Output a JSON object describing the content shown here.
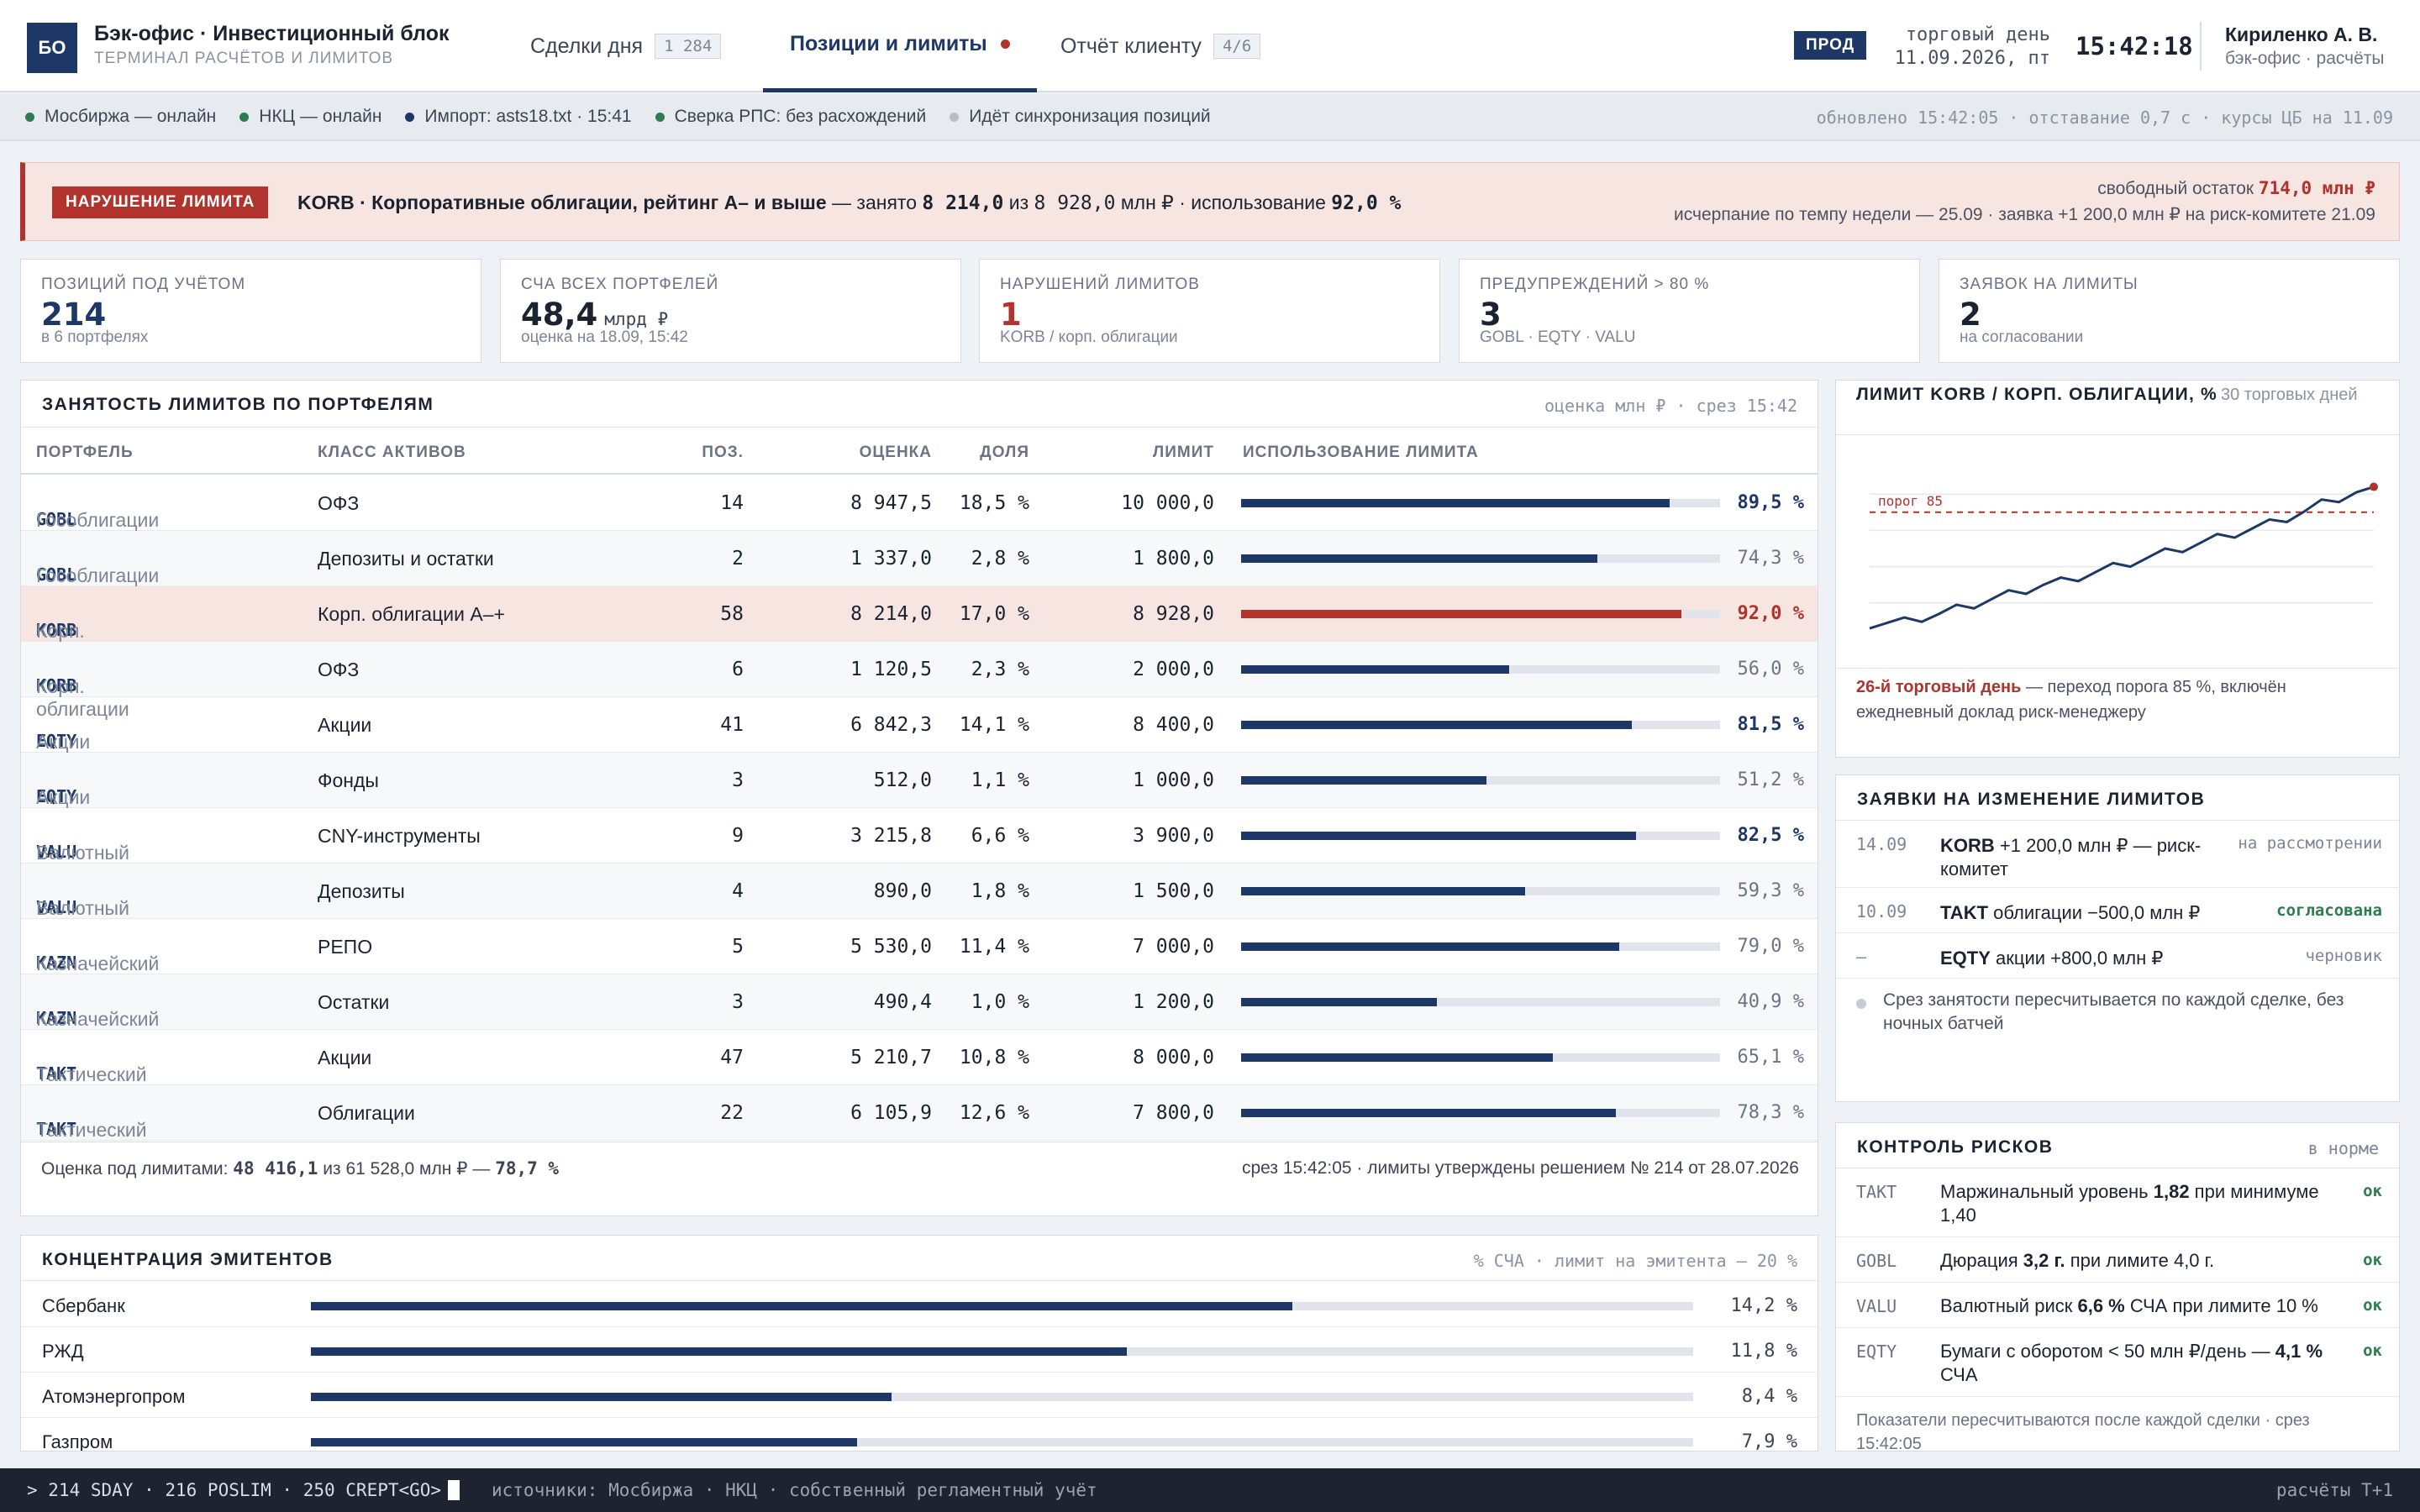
{
  "app": {
    "logo": "БО",
    "title": "Бэк-офис · Инвестиционный блок",
    "subtitle": "ТЕРМИНАЛ РАСЧЁТОВ И ЛИМИТОВ"
  },
  "tabs": [
    {
      "label": "Сделки дня",
      "count": "1 284"
    },
    {
      "label": "Позиции и лимиты"
    },
    {
      "label": "Отчёт клиенту",
      "count": "4/6"
    }
  ],
  "header": {
    "env": "ПРОД",
    "day_label": "торговый день",
    "day_value": "11.09.2026, пт",
    "clock": "15:42:18",
    "user": "Кириленко А. В.",
    "role": "бэк-офис · расчёты"
  },
  "status": {
    "items": [
      {
        "text": "Мосбиржа — онлайн",
        "color": "#2e7d4f"
      },
      {
        "text": "НКЦ — онлайн",
        "color": "#2e7d4f"
      },
      {
        "text": "Импорт: asts18.txt · 15:41",
        "color": "#1d3866"
      },
      {
        "text": "Сверка РПС: без расхождений",
        "color": "#2e7d4f"
      },
      {
        "text": "Идёт синхронизация позиций",
        "color": "#b8bec9"
      }
    ],
    "updated": "обновлено 15:42:05 · отставание 0,7 с · курсы ЦБ на 11.09"
  },
  "alert": {
    "badge": "НАРУШЕНИЕ ЛИМИТА",
    "title": "KORB · Корпоративные облигации, рейтинг A– и выше",
    "t1": " — занято ",
    "v1": "8 214,0",
    "t2": " из ",
    "v2": "8 928,0",
    "t3": " млн ₽ · использование ",
    "v3": "92,0 %",
    "free_label": "свободный остаток ",
    "free_value": "714,0 млн ₽",
    "line2": "исчерпание по темпу недели — 25.09 · заявка +1 200,0 млн ₽ на риск-комитете 21.09"
  },
  "kpis": [
    {
      "label": "ПОЗИЦИЙ ПОД УЧЁТОМ",
      "value": "214",
      "unit": "",
      "sub": "в 6 портфелях",
      "color": "#1d3866"
    },
    {
      "label": "СЧА ВСЕХ ПОРТФЕЛЕЙ",
      "value": "48,4",
      "unit": "млрд ₽",
      "sub": "оценка на 18.09, 15:42",
      "color": "#1b2230"
    },
    {
      "label": "НАРУШЕНИЙ ЛИМИТОВ",
      "value": "1",
      "unit": "",
      "sub": "KORB / корп. облигации",
      "color": "#b0332d"
    },
    {
      "label": "ПРЕДУПРЕЖДЕНИЙ > 80 %",
      "value": "3",
      "unit": "",
      "sub": "GOBL · EQTY · VALU",
      "color": "#1b2230"
    },
    {
      "label": "ЗАЯВОК НА ЛИМИТЫ",
      "value": "2",
      "unit": "",
      "sub": "на согласовании",
      "color": "#1b2230"
    }
  ],
  "limits": {
    "title": "ЗАНЯТОСТЬ ЛИМИТОВ ПО ПОРТФЕЛЯМ",
    "note": "оценка млн ₽ · срез 15:42",
    "columns": [
      "ПОРТФЕЛЬ",
      "КЛАСС АКТИВОВ",
      "ПОЗ.",
      "ОЦЕНКА",
      "ДОЛЯ",
      "ЛИМИТ",
      "ИСПОЛЬЗОВАНИЕ ЛИМИТА"
    ],
    "rows": [
      {
        "code": "GOBL",
        "portfolio": "Гособлигации",
        "cls": "ОФЗ",
        "pos": "14",
        "val": "8 947,5",
        "share": "18,5 %",
        "limit": "10 000,0",
        "use": 89.5,
        "use_text": "89,5 %",
        "state": "warn"
      },
      {
        "code": "GOBL",
        "portfolio": "Гособлигации",
        "cls": "Депозиты и остатки",
        "pos": "2",
        "val": "1 337,0",
        "share": "2,8 %",
        "limit": "1 800,0",
        "use": 74.3,
        "use_text": "74,3 %",
        "state": "ok"
      },
      {
        "code": "KORB",
        "portfolio": "Корп. облигации",
        "cls": "Корп. облигации A–+",
        "pos": "58",
        "val": "8 214,0",
        "share": "17,0 %",
        "limit": "8 928,0",
        "use": 92.0,
        "use_text": "92,0 %",
        "state": "breach"
      },
      {
        "code": "KORB",
        "portfolio": "Корп. облигации",
        "cls": "ОФЗ",
        "pos": "6",
        "val": "1 120,5",
        "share": "2,3 %",
        "limit": "2 000,0",
        "use": 56.0,
        "use_text": "56,0 %",
        "state": "ok"
      },
      {
        "code": "EQTY",
        "portfolio": "Акции",
        "cls": "Акции",
        "pos": "41",
        "val": "6 842,3",
        "share": "14,1 %",
        "limit": "8 400,0",
        "use": 81.5,
        "use_text": "81,5 %",
        "state": "warn"
      },
      {
        "code": "EQTY",
        "portfolio": "Акции",
        "cls": "Фонды",
        "pos": "3",
        "val": "512,0",
        "share": "1,1 %",
        "limit": "1 000,0",
        "use": 51.2,
        "use_text": "51,2 %",
        "state": "ok"
      },
      {
        "code": "VALU",
        "portfolio": "Валютный",
        "cls": "CNY-инструменты",
        "pos": "9",
        "val": "3 215,8",
        "share": "6,6 %",
        "limit": "3 900,0",
        "use": 82.5,
        "use_text": "82,5 %",
        "state": "warn"
      },
      {
        "code": "VALU",
        "portfolio": "Валютный",
        "cls": "Депозиты",
        "pos": "4",
        "val": "890,0",
        "share": "1,8 %",
        "limit": "1 500,0",
        "use": 59.3,
        "use_text": "59,3 %",
        "state": "ok"
      },
      {
        "code": "KAZN",
        "portfolio": "Казначейский",
        "cls": "РЕПО",
        "pos": "5",
        "val": "5 530,0",
        "share": "11,4 %",
        "limit": "7 000,0",
        "use": 79.0,
        "use_text": "79,0 %",
        "state": "ok"
      },
      {
        "code": "KAZN",
        "portfolio": "Казначейский",
        "cls": "Остатки",
        "pos": "3",
        "val": "490,4",
        "share": "1,0 %",
        "limit": "1 200,0",
        "use": 40.9,
        "use_text": "40,9 %",
        "state": "ok"
      },
      {
        "code": "TAKT",
        "portfolio": "Тактический",
        "cls": "Акции",
        "pos": "47",
        "val": "5 210,7",
        "share": "10,8 %",
        "limit": "8 000,0",
        "use": 65.1,
        "use_text": "65,1 %",
        "state": "ok"
      },
      {
        "code": "TAKT",
        "portfolio": "Тактический",
        "cls": "Облигации",
        "pos": "22",
        "val": "6 105,9",
        "share": "12,6 %",
        "limit": "7 800,0",
        "use": 78.3,
        "use_text": "78,3 %",
        "state": "ok"
      }
    ],
    "footer_label": "Оценка под лимитами: ",
    "footer_value": "48 416,1",
    "footer_mid": " из 61 528,0 млн ₽ — ",
    "footer_pct": "78,7 %",
    "footer_right": "срез 15:42:05 · лимиты утверждены решением № 214 от 28.07.2026"
  },
  "concentration": {
    "title": "КОНЦЕНТРАЦИЯ ЭМИТЕНТОВ",
    "note": "% СЧА · лимит на эмитента — 20 %",
    "items": [
      {
        "name": "Сбербанк",
        "value": 14.2,
        "text": "14,2 %"
      },
      {
        "name": "РЖД",
        "value": 11.8,
        "text": "11,8 %"
      },
      {
        "name": "Атомэнергопром",
        "value": 8.4,
        "text": "8,4 %"
      },
      {
        "name": "Газпром",
        "value": 7.9,
        "text": "7,9 %"
      }
    ]
  },
  "chart_data": {
    "type": "line",
    "title": "ЛИМИТ KORB / КОРП. ОБЛИГАЦИИ, %",
    "subtitle": "30 торговых дней",
    "threshold": 85,
    "threshold_label": "порог 85",
    "ylim": [
      50,
      100
    ],
    "x": [
      1,
      2,
      3,
      4,
      5,
      6,
      7,
      8,
      9,
      10,
      11,
      12,
      13,
      14,
      15,
      16,
      17,
      18,
      19,
      20,
      21,
      22,
      23,
      24,
      25,
      26,
      27,
      28,
      29,
      30
    ],
    "values": [
      53,
      54.5,
      56,
      54.8,
      57,
      59.5,
      58.5,
      61,
      63.5,
      62.5,
      65,
      67,
      66,
      68.5,
      71,
      70,
      72.5,
      75,
      74,
      76.5,
      79,
      78,
      80.5,
      83,
      82.3,
      85.2,
      88.5,
      87.8,
      90.5,
      92
    ]
  },
  "chart_note": {
    "strong": "26-й торговый день",
    "rest": " — переход порога 85 %, включён ежедневный доклад риск-менеджеру"
  },
  "requests": {
    "title": "ЗАЯВКИ НА ИЗМЕНЕНИЕ ЛИМИТОВ",
    "items": [
      {
        "date": "14.09",
        "code": "KORB",
        "text": " +1 200,0 млн ₽ — риск-комитет",
        "status": "на рассмотрении",
        "color": "#7c8596"
      },
      {
        "date": "10.09",
        "code": "TAKT",
        "text": " облигации −500,0 млн ₽",
        "status": "согласована",
        "color": "#2e7d4f"
      },
      {
        "date": "—",
        "code": "EQTY",
        "text": " акции +800,0 млн ₽",
        "status": "черновик",
        "color": "#7c8596"
      }
    ],
    "note": "Срез занятости пересчитывается по каждой сделке, без ночных батчей"
  },
  "risks": {
    "title": "КОНТРОЛЬ РИСКОВ",
    "status": "в норме",
    "items": [
      {
        "code": "TAKT",
        "t1": "Маржинальный уровень ",
        "v": "1,82",
        "t2": " при минимуме 1,40",
        "ok": "ок"
      },
      {
        "code": "GOBL",
        "t1": "Дюрация ",
        "v": "3,2 г.",
        "t2": " при лимите 4,0 г.",
        "ok": "ок"
      },
      {
        "code": "VALU",
        "t1": "Валютный риск ",
        "v": "6,6 %",
        "t2": " СЧА при лимите 10 %",
        "ok": "ок"
      },
      {
        "code": "EQTY",
        "t1": "Бумаги с оборотом < 50 млн ₽/день — ",
        "v": "4,1 %",
        "t2": " СЧА",
        "ok": "ок"
      }
    ],
    "note": "Показатели пересчитываются после каждой сделки · срез 15:42:05"
  },
  "terminal": {
    "command": "> 214 SDAY · 216 POSLIM · 250 CREPT<GO>",
    "sources": "источники: Мосбиржа · НКЦ · собственный регламентный учёт",
    "right": "расчёты T+1"
  }
}
